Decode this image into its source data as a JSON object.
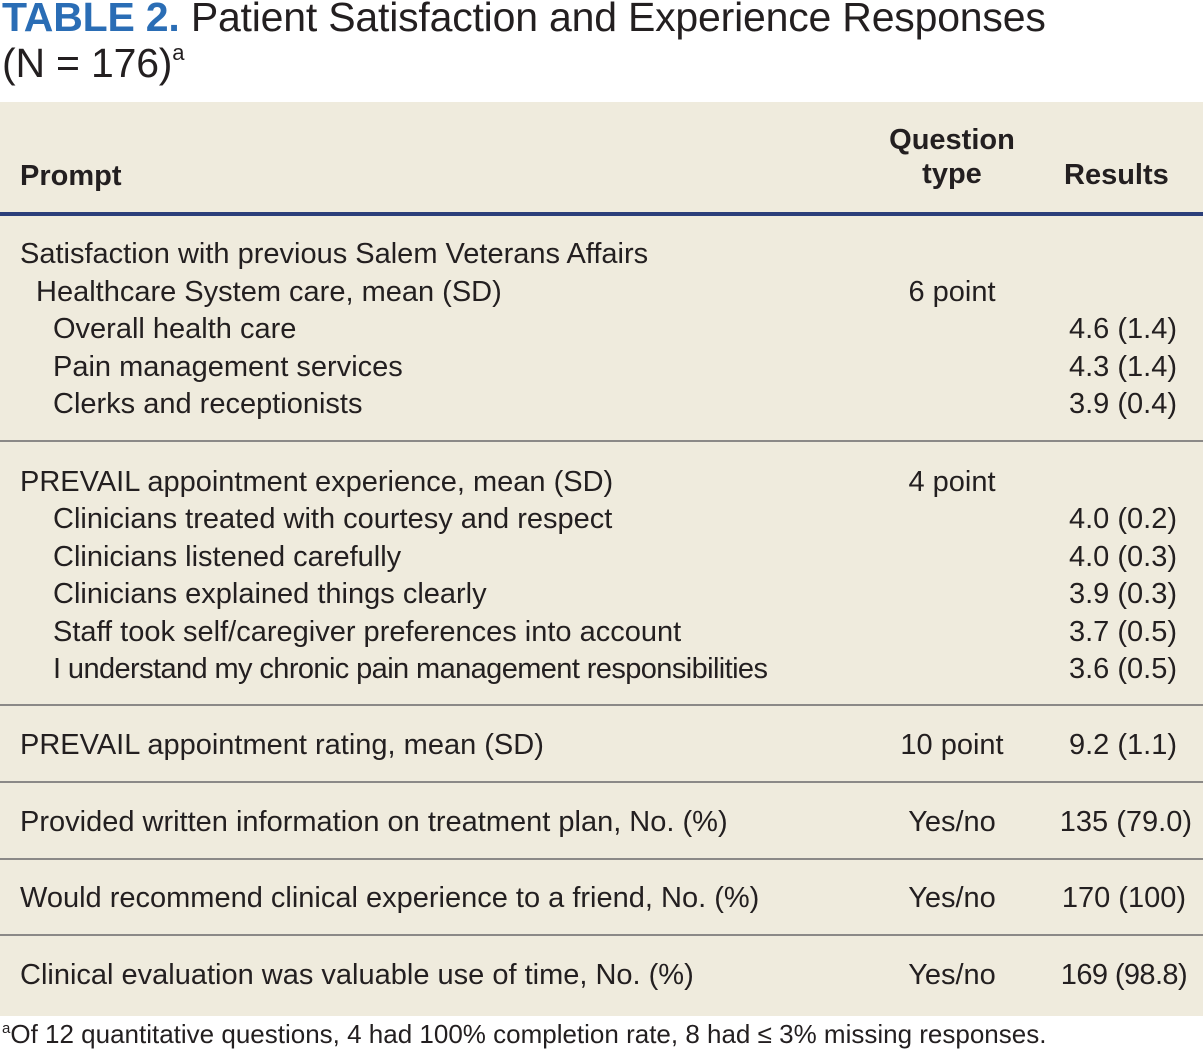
{
  "title": {
    "label": "TABLE 2.",
    "text": "Patient Satisfaction and Experience Responses",
    "line2": "(N = 176)",
    "sup": "a"
  },
  "header": {
    "prompt": "Prompt",
    "question_type_line1": "Question",
    "question_type_line2": "type",
    "results": "Results"
  },
  "sections": [
    {
      "prompt_line1": "Satisfaction with previous Salem Veterans Affairs",
      "prompt_line2": "Healthcare System care, mean (SD)",
      "question_type": "6 point",
      "items": [
        {
          "label": "Overall health care",
          "result": "4.6 (1.4)"
        },
        {
          "label": "Pain management services",
          "result": "4.3 (1.4)"
        },
        {
          "label": "Clerks and receptionists",
          "result": "3.9 (0.4)"
        }
      ]
    },
    {
      "prompt": "PREVAIL appointment experience, mean (SD)",
      "question_type": "4 point",
      "items": [
        {
          "label": "Clinicians treated with courtesy and respect",
          "result": "4.0 (0.2)"
        },
        {
          "label": "Clinicians listened carefully",
          "result": "4.0 (0.3)"
        },
        {
          "label": "Clinicians explained things clearly",
          "result": "3.9 (0.3)"
        },
        {
          "label": "Staff took self/caregiver preferences into account",
          "result": "3.7 (0.5)"
        },
        {
          "label": "I understand my chronic pain management responsibilities",
          "result": "3.6 (0.5)"
        }
      ]
    },
    {
      "prompt": "PREVAIL appointment rating, mean (SD)",
      "question_type": "10 point",
      "result": "9.2 (1.1)"
    },
    {
      "prompt": "Provided written information on treatment plan, No. (%)",
      "question_type": "Yes/no",
      "result": "135 (79.0)"
    },
    {
      "prompt": "Would recommend clinical experience to a friend, No. (%)",
      "question_type": "Yes/no",
      "result": "170 (100)"
    },
    {
      "prompt": "Clinical evaluation was valuable use of time, No. (%)",
      "question_type": "Yes/no",
      "result": "169 (98.8)"
    }
  ],
  "footnote": {
    "sup": "a",
    "text": "Of 12 quantitative questions, 4 had 100% completion rate, 8 had ≤ 3% missing responses."
  },
  "colors": {
    "label_blue": "#2a6db5",
    "table_bg": "#efebdd",
    "header_rule": "#2b3f7a",
    "separator": "#8b8987",
    "text": "#231f20"
  }
}
